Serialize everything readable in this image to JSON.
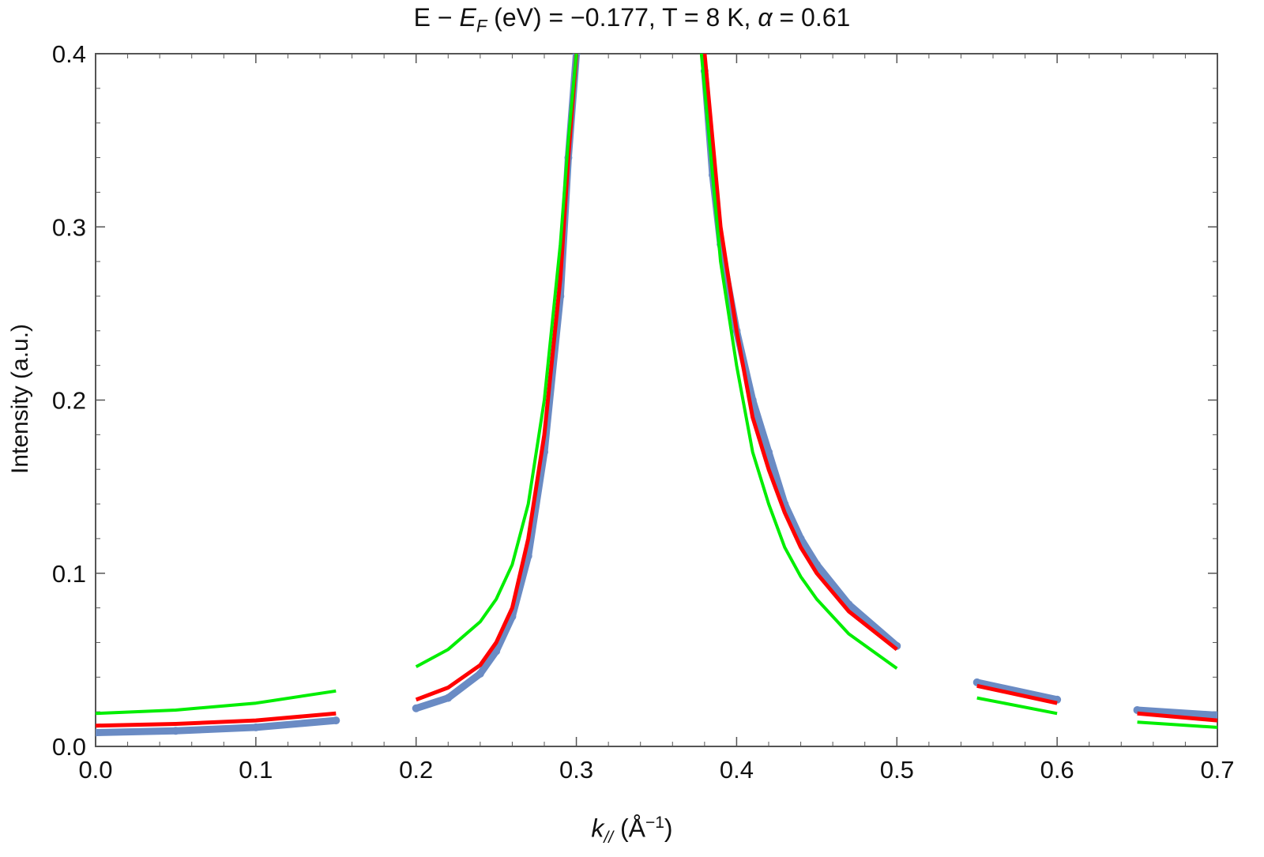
{
  "title_parts": {
    "lead": "E − ",
    "ef_main": "E",
    "ef_sub": "F",
    "tail": " (eV) = −0.177, T = 8 K, ",
    "alpha": "α",
    "alpha_value": " = 0.61"
  },
  "xlabel_parts": {
    "k_main": "k",
    "k_sub": "//",
    "unit_open": " (Å",
    "unit_exp": "−1",
    "unit_close": ")"
  },
  "ylabel": "Intensity (a.u.)",
  "chart_data": {
    "type": "line",
    "title": "E − E_F (eV) = −0.177, T = 8 K, α = 0.61",
    "xlabel": "k// (Å⁻¹)",
    "ylabel": "Intensity (a.u.)",
    "xlim": [
      0.0,
      0.7
    ],
    "ylim": [
      0.0,
      0.4
    ],
    "x_ticks": [
      "0.0",
      "0.1",
      "0.2",
      "0.3",
      "0.4",
      "0.5",
      "0.6",
      "0.7"
    ],
    "y_ticks": [
      "0.0",
      "0.1",
      "0.2",
      "0.3",
      "0.4"
    ],
    "grid": false,
    "legend": "none",
    "series": [
      {
        "kind": "scatter",
        "color": "#6a8bc4",
        "x": [
          0.0,
          0.05,
          0.1,
          0.15,
          0.2,
          0.22,
          0.24,
          0.25,
          0.26,
          0.27,
          0.28,
          0.29,
          0.295,
          0.3,
          0.38,
          0.385,
          0.39,
          0.4,
          0.41,
          0.42,
          0.43,
          0.44,
          0.45,
          0.47,
          0.5,
          0.55,
          0.6,
          0.65,
          0.7
        ],
        "y": [
          0.008,
          0.009,
          0.011,
          0.015,
          0.022,
          0.028,
          0.042,
          0.055,
          0.075,
          0.11,
          0.17,
          0.26,
          0.34,
          0.4,
          0.39,
          0.33,
          0.29,
          0.24,
          0.2,
          0.17,
          0.14,
          0.12,
          0.105,
          0.082,
          0.058,
          0.037,
          0.027,
          0.021,
          0.018
        ]
      },
      {
        "kind": "line",
        "color": "#ff0000",
        "x": [
          0.0,
          0.05,
          0.1,
          0.15,
          0.2,
          0.22,
          0.24,
          0.25,
          0.26,
          0.27,
          0.28,
          0.29,
          0.295,
          0.3,
          0.38,
          0.385,
          0.39,
          0.4,
          0.41,
          0.42,
          0.43,
          0.44,
          0.45,
          0.47,
          0.5,
          0.55,
          0.6,
          0.65,
          0.7
        ],
        "y": [
          0.012,
          0.013,
          0.015,
          0.019,
          0.027,
          0.034,
          0.047,
          0.06,
          0.08,
          0.12,
          0.18,
          0.27,
          0.34,
          0.4,
          0.4,
          0.35,
          0.3,
          0.24,
          0.19,
          0.16,
          0.135,
          0.115,
          0.1,
          0.078,
          0.056,
          0.035,
          0.025,
          0.019,
          0.015
        ]
      },
      {
        "kind": "line",
        "color": "#00ee00",
        "x": [
          0.0,
          0.05,
          0.1,
          0.15,
          0.2,
          0.22,
          0.24,
          0.25,
          0.26,
          0.27,
          0.28,
          0.29,
          0.295,
          0.3,
          0.378,
          0.385,
          0.39,
          0.4,
          0.41,
          0.42,
          0.43,
          0.44,
          0.45,
          0.47,
          0.5,
          0.55,
          0.6,
          0.65,
          0.7
        ],
        "y": [
          0.019,
          0.021,
          0.025,
          0.032,
          0.046,
          0.056,
          0.072,
          0.085,
          0.105,
          0.14,
          0.2,
          0.29,
          0.35,
          0.4,
          0.4,
          0.33,
          0.28,
          0.22,
          0.17,
          0.14,
          0.115,
          0.098,
          0.085,
          0.065,
          0.045,
          0.028,
          0.019,
          0.014,
          0.011
        ]
      }
    ]
  }
}
